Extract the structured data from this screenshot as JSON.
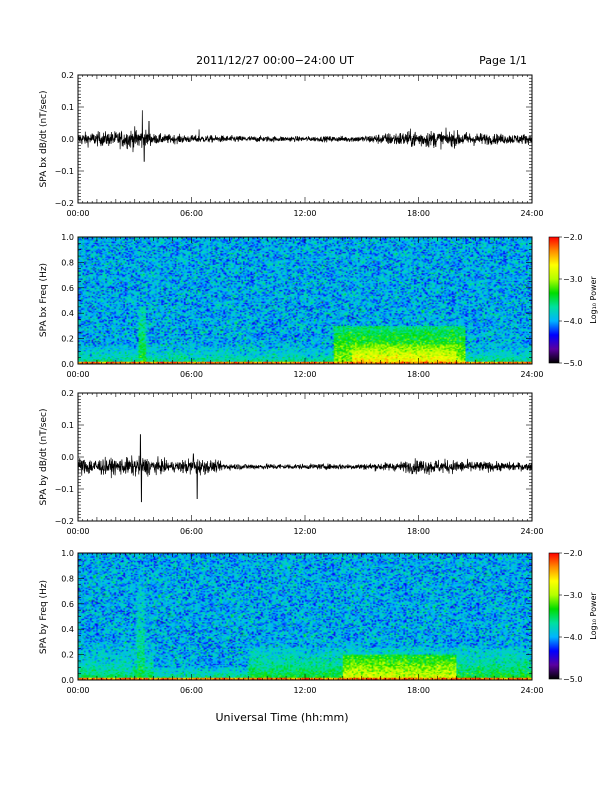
{
  "header": {
    "title": "2011/12/27  00:00−24:00 UT",
    "page": "Page 1/1"
  },
  "footer": {
    "xlabel": "Universal Time (hh:mm)"
  },
  "colorbar": {
    "label": "Log₁₀ Power",
    "ticks": [
      "−2.0",
      "−3.0",
      "−4.0",
      "−5.0"
    ],
    "range": [
      -5.0,
      -2.0
    ],
    "colors": [
      "#000000",
      "#5a00a0",
      "#0000ff",
      "#00b4ff",
      "#00e0a0",
      "#00dc00",
      "#b4ff00",
      "#ffff00",
      "#ff8c00",
      "#ff0000"
    ]
  },
  "chart_data": [
    {
      "type": "line",
      "ylabel": "SPA bx dB/dt (nT/sec)",
      "x_ticks": [
        "00:00",
        "06:00",
        "12:00",
        "18:00",
        "24:00"
      ],
      "xlim": [
        0,
        24
      ],
      "y_ticks": [
        "0.2",
        "0.1",
        "0.0",
        "−0.1",
        "−0.2"
      ],
      "ylim": [
        -0.2,
        0.2
      ],
      "series": [
        {
          "baseline": 0.0,
          "amplitude_envelope": [
            [
              0,
              0.025
            ],
            [
              2,
              0.03
            ],
            [
              3.3,
              0.045
            ],
            [
              4,
              0.02
            ],
            [
              6,
              0.015
            ],
            [
              9,
              0.012
            ],
            [
              12,
              0.01
            ],
            [
              15,
              0.012
            ],
            [
              16.5,
              0.025
            ],
            [
              18,
              0.035
            ],
            [
              20,
              0.03
            ],
            [
              22,
              0.02
            ],
            [
              24,
              0.02
            ]
          ],
          "spikes": [
            [
              3.4,
              0.09
            ],
            [
              3.5,
              -0.07
            ],
            [
              3.75,
              0.055
            ],
            [
              6.4,
              0.03
            ]
          ]
        }
      ]
    },
    {
      "type": "heatmap",
      "ylabel": "SPA bx Freq (Hz)",
      "x_ticks": [
        "00:00",
        "06:00",
        "12:00",
        "18:00",
        "24:00"
      ],
      "xlim": [
        0,
        24
      ],
      "y_ticks": [
        "1.0",
        "0.8",
        "0.6",
        "0.4",
        "0.2",
        "0.0"
      ],
      "ylim": [
        0,
        1.0
      ],
      "z_range": [
        -5.0,
        -2.0
      ],
      "features": [
        {
          "t_start": 0,
          "t_end": 24,
          "f_max": 0.15,
          "log_power": -3.6
        },
        {
          "t_start": 3.2,
          "t_end": 3.6,
          "f_max": 0.45,
          "log_power": -3.3
        },
        {
          "t_start": 13.5,
          "t_end": 20.5,
          "f_max": 0.3,
          "log_power": -3.0
        },
        {
          "t_start": 14.5,
          "t_end": 20,
          "f_max": 0.15,
          "log_power": -2.6
        }
      ]
    },
    {
      "type": "line",
      "ylabel": "SPA by dB/dt (nT/sec)",
      "x_ticks": [
        "00:00",
        "06:00",
        "12:00",
        "18:00",
        "24:00"
      ],
      "xlim": [
        0,
        24
      ],
      "y_ticks": [
        "0.2",
        "0.1",
        "0.0",
        "−0.1",
        "−0.2"
      ],
      "ylim": [
        -0.2,
        0.2
      ],
      "series": [
        {
          "baseline": -0.03,
          "amplitude_envelope": [
            [
              0,
              0.035
            ],
            [
              2,
              0.03
            ],
            [
              3.3,
              0.04
            ],
            [
              5,
              0.02
            ],
            [
              6.2,
              0.035
            ],
            [
              8,
              0.012
            ],
            [
              12,
              0.01
            ],
            [
              15,
              0.012
            ],
            [
              17,
              0.018
            ],
            [
              18,
              0.03
            ],
            [
              20,
              0.025
            ],
            [
              22,
              0.018
            ],
            [
              24,
              0.015
            ]
          ],
          "spikes": [
            [
              3.3,
              0.1
            ],
            [
              3.35,
              -0.11
            ],
            [
              6.1,
              0.04
            ],
            [
              6.3,
              -0.1
            ]
          ]
        }
      ]
    },
    {
      "type": "heatmap",
      "ylabel": "SPA by Freq (Hz)",
      "x_ticks": [
        "00:00",
        "06:00",
        "12:00",
        "18:00",
        "24:00"
      ],
      "xlim": [
        0,
        24
      ],
      "y_ticks": [
        "1.0",
        "0.8",
        "0.6",
        "0.4",
        "0.2",
        "0.0"
      ],
      "ylim": [
        0,
        1.0
      ],
      "z_range": [
        -5.0,
        -2.0
      ],
      "features": [
        {
          "t_start": 0,
          "t_end": 24,
          "f_max": 0.1,
          "log_power": -3.5
        },
        {
          "t_start": 0,
          "t_end": 4,
          "f_max": 0.3,
          "log_power": -3.6
        },
        {
          "t_start": 3.1,
          "t_end": 3.5,
          "f_max": 0.9,
          "log_power": -3.5
        },
        {
          "t_start": 9,
          "t_end": 24,
          "f_max": 0.25,
          "log_power": -3.4
        },
        {
          "t_start": 14,
          "t_end": 20,
          "f_max": 0.2,
          "log_power": -2.8
        }
      ]
    }
  ]
}
